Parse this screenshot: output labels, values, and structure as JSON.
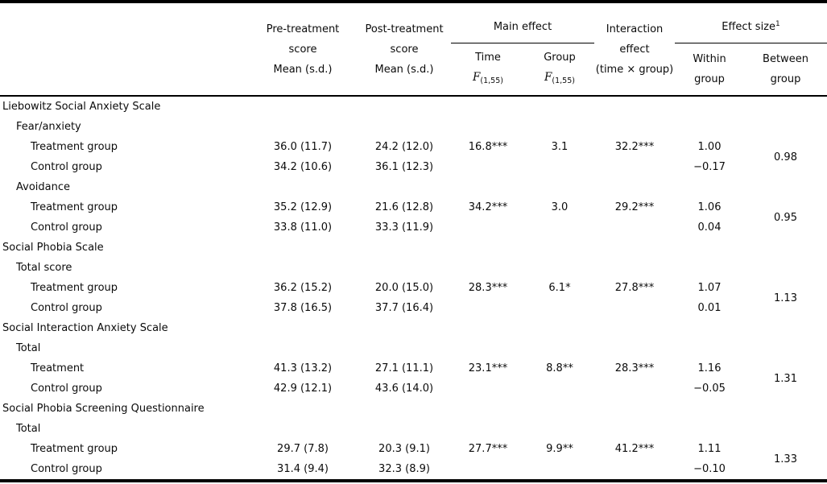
{
  "table": {
    "header": {
      "pre": [
        "Pre-treatment",
        "score",
        "Mean (s.d.)"
      ],
      "post": [
        "Post-treatment",
        "score",
        "Mean (s.d.)"
      ],
      "main_effect": "Main effect",
      "time": "Time",
      "group": "Group",
      "f": "F",
      "f_sub": "(1,55)",
      "interaction": [
        "Interaction",
        "effect",
        "(time × group)"
      ],
      "effect_size": "Effect size",
      "effect_size_sup": "1",
      "within": [
        "Within",
        "group"
      ],
      "between": [
        "Between",
        "group"
      ]
    },
    "rows": [
      {
        "label": "Liebowitz Social Anxiety Scale",
        "indent": 0
      },
      {
        "label": "Fear/anxiety",
        "indent": 1
      },
      {
        "label": "Treatment group",
        "indent": 2,
        "pre": "36.0 (11.7)",
        "post": "24.2 (12.0)",
        "time": "16.8***",
        "group": "3.1",
        "interaction": "32.2***",
        "within": "1.00",
        "between": "0.98",
        "between_span": 2
      },
      {
        "label": "Control group",
        "indent": 2,
        "pre": "34.2 (10.6)",
        "post": "36.1 (12.3)",
        "within": "−0.17"
      },
      {
        "label": "Avoidance",
        "indent": 1
      },
      {
        "label": "Treatment group",
        "indent": 2,
        "pre": "35.2 (12.9)",
        "post": "21.6 (12.8)",
        "time": "34.2***",
        "group": "3.0",
        "interaction": "29.2***",
        "within": "1.06",
        "between": "0.95",
        "between_span": 2
      },
      {
        "label": "Control group",
        "indent": 2,
        "pre": "33.8 (11.0)",
        "post": "33.3 (11.9)",
        "within": "0.04"
      },
      {
        "label": "Social Phobia Scale",
        "indent": 0
      },
      {
        "label": "Total score",
        "indent": 1
      },
      {
        "label": "Treatment group",
        "indent": 2,
        "pre": "36.2 (15.2)",
        "post": "20.0 (15.0)",
        "time": "28.3***",
        "group": "6.1*",
        "interaction": "27.8***",
        "within": "1.07",
        "between": "1.13",
        "between_span": 2
      },
      {
        "label": "Control group",
        "indent": 2,
        "pre": "37.8 (16.5)",
        "post": "37.7 (16.4)",
        "within": "0.01"
      },
      {
        "label": "Social Interaction Anxiety Scale",
        "indent": 0
      },
      {
        "label": "Total",
        "indent": 1
      },
      {
        "label": "Treatment",
        "indent": 2,
        "pre": "41.3 (13.2)",
        "post": "27.1 (11.1)",
        "time": "23.1***",
        "group": "8.8**",
        "interaction": "28.3***",
        "within": "1.16",
        "between": "1.31",
        "between_span": 2
      },
      {
        "label": "Control group",
        "indent": 2,
        "pre": "42.9 (12.1)",
        "post": "43.6 (14.0)",
        "within": "−0.05"
      },
      {
        "label": "Social Phobia Screening Questionnaire",
        "indent": 0
      },
      {
        "label": "Total",
        "indent": 1
      },
      {
        "label": "Treatment group",
        "indent": 2,
        "pre": "29.7 (7.8)",
        "post": "20.3 (9.1)",
        "time": "27.7***",
        "group": "9.9**",
        "interaction": "41.2***",
        "within": "1.11",
        "between": "1.33",
        "between_span": 2
      },
      {
        "label": "Control group",
        "indent": 2,
        "pre": "31.4 (9.4)",
        "post": "32.3 (8.9)",
        "within": "−0.10"
      }
    ]
  }
}
